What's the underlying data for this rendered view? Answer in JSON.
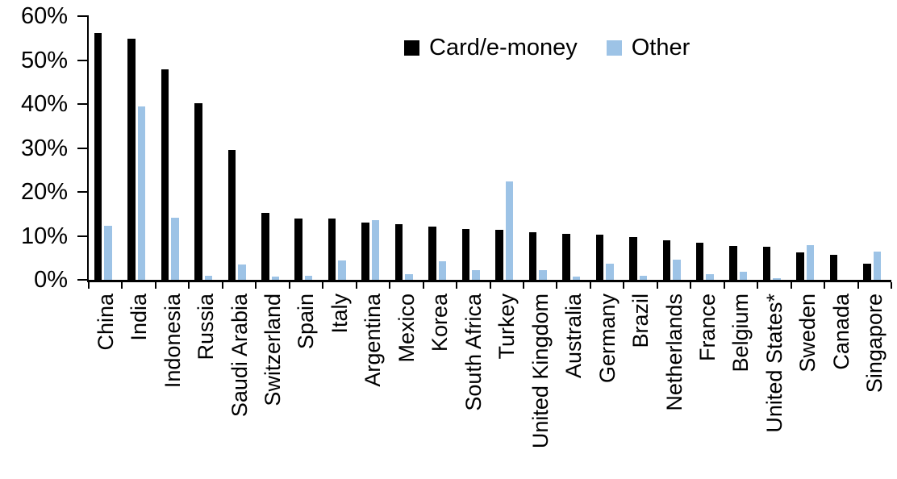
{
  "chart_data": {
    "type": "bar",
    "title": "",
    "xlabel": "",
    "ylabel": "",
    "ylim": [
      0,
      60
    ],
    "ytick_step": 10,
    "ytick_labels": [
      "0%",
      "10%",
      "20%",
      "30%",
      "40%",
      "50%",
      "60%"
    ],
    "grid": false,
    "legend_position": "top-center",
    "categories": [
      "China",
      "India",
      "Indonesia",
      "Russia",
      "Saudi Arabia",
      "Switzerland",
      "Spain",
      "Italy",
      "Argentina",
      "Mexico",
      "Korea",
      "South Africa",
      "Turkey",
      "United Kingdom",
      "Australia",
      "Germany",
      "Brazil",
      "Netherlands",
      "France",
      "Belgium",
      "United States*",
      "Sweden",
      "Canada",
      "Singapore"
    ],
    "series": [
      {
        "name": "Card/e-money",
        "color": "#000000",
        "values": [
          56.1,
          54.8,
          47.9,
          40.2,
          29.6,
          15.3,
          14.0,
          13.9,
          13.1,
          12.6,
          12.1,
          11.5,
          11.4,
          10.8,
          10.5,
          10.3,
          9.7,
          8.9,
          8.4,
          7.7,
          7.5,
          6.2,
          5.6,
          3.6
        ]
      },
      {
        "name": "Other",
        "color": "#9DC3E6",
        "values": [
          12.3,
          39.4,
          14.2,
          0.9,
          3.5,
          0.8,
          0.9,
          4.4,
          13.6,
          1.2,
          4.3,
          2.2,
          22.4,
          2.2,
          0.8,
          3.6,
          0.9,
          4.6,
          1.3,
          1.8,
          0.3,
          7.9,
          0,
          6.4
        ]
      }
    ]
  }
}
